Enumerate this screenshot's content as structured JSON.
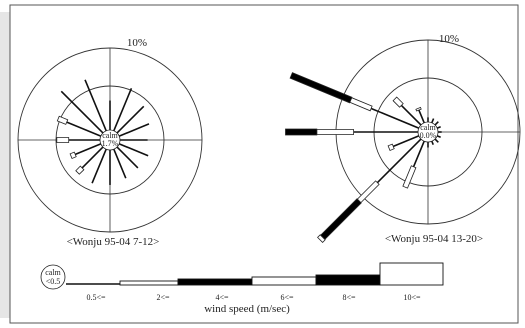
{
  "chart_data": [
    {
      "type": "wind-rose",
      "caption": "<Wonju 95-04 7-12>",
      "ring_label": "10%",
      "calm_label": "calm",
      "calm_value": "1.7%",
      "ring_percent": 10,
      "directions": [
        "N",
        "NNE",
        "NE",
        "ENE",
        "E",
        "ESE",
        "SE",
        "SSE",
        "S",
        "SSW",
        "SW",
        "WSW",
        "W",
        "WNW",
        "NW",
        "NNW"
      ],
      "wind_speed_bins": [
        "0.5<=",
        "2<=",
        "4<=",
        "6<=",
        "8<=",
        "10<="
      ],
      "petals": [
        {
          "direction": "N",
          "pct": [
            3.2,
            0,
            0,
            0,
            0,
            0
          ]
        },
        {
          "direction": "NNE",
          "pct": [
            5.0,
            0,
            0,
            0,
            0,
            0
          ]
        },
        {
          "direction": "NE",
          "pct": [
            4.1,
            0,
            0,
            0,
            0,
            0
          ]
        },
        {
          "direction": "ENE",
          "pct": [
            3.5,
            0,
            0,
            0,
            0,
            0
          ]
        },
        {
          "direction": "E",
          "pct": [
            3.0,
            0,
            0,
            0,
            0,
            0
          ]
        },
        {
          "direction": "ESE",
          "pct": [
            3.4,
            0,
            0,
            0,
            0,
            0
          ]
        },
        {
          "direction": "SE",
          "pct": [
            3.2,
            0,
            0,
            0,
            0,
            0
          ]
        },
        {
          "direction": "SSE",
          "pct": [
            3.4,
            0,
            0,
            0,
            0,
            0
          ]
        },
        {
          "direction": "S",
          "pct": [
            3.8,
            0,
            0,
            0,
            0,
            0
          ]
        },
        {
          "direction": "SSW",
          "pct": [
            4.0,
            0,
            0,
            0,
            0,
            0
          ]
        },
        {
          "direction": "SW",
          "pct": [
            3.2,
            0.7,
            0,
            0,
            0,
            0
          ]
        },
        {
          "direction": "WSW",
          "pct": [
            3.0,
            0.5,
            0,
            0,
            0,
            0
          ]
        },
        {
          "direction": "W",
          "pct": [
            3.4,
            1.3,
            0,
            0,
            0,
            0
          ]
        },
        {
          "direction": "WNW",
          "pct": [
            4.0,
            1.0,
            0,
            0,
            0,
            0
          ]
        },
        {
          "direction": "NW",
          "pct": [
            6.4,
            0,
            0,
            0,
            0,
            0
          ]
        },
        {
          "direction": "NNW",
          "pct": [
            6.0,
            0,
            0,
            0,
            0,
            0
          ]
        }
      ]
    },
    {
      "type": "wind-rose",
      "caption": "<Wonju 95-04 13-20>",
      "ring_label": "10%",
      "calm_label": "calm",
      "calm_value": "0.0%",
      "ring_percent": 10,
      "directions": [
        "N",
        "NNE",
        "NE",
        "ENE",
        "E",
        "ESE",
        "SE",
        "SSE",
        "S",
        "SSW",
        "SW",
        "WSW",
        "W",
        "WNW",
        "NW",
        "NNW"
      ],
      "wind_speed_bins": [
        "0.5<=",
        "2<=",
        "4<=",
        "6<=",
        "8<=",
        "10<="
      ],
      "petals": [
        {
          "direction": "N",
          "pct": [
            0.5,
            0,
            0,
            0,
            0,
            0
          ]
        },
        {
          "direction": "NNE",
          "pct": [
            0.5,
            0,
            0,
            0,
            0,
            0
          ]
        },
        {
          "direction": "NE",
          "pct": [
            0.5,
            0,
            0,
            0,
            0,
            0
          ]
        },
        {
          "direction": "ENE",
          "pct": [
            0.4,
            0,
            0,
            0,
            0,
            0
          ]
        },
        {
          "direction": "E",
          "pct": [
            0.4,
            0,
            0,
            0,
            0,
            0
          ]
        },
        {
          "direction": "ESE",
          "pct": [
            0.4,
            0,
            0,
            0,
            0,
            0
          ]
        },
        {
          "direction": "SE",
          "pct": [
            0.5,
            0,
            0,
            0,
            0,
            0
          ]
        },
        {
          "direction": "SSE",
          "pct": [
            0.4,
            0,
            0,
            0,
            0,
            0
          ]
        },
        {
          "direction": "S",
          "pct": [
            0.6,
            0,
            0,
            0,
            0,
            0
          ]
        },
        {
          "direction": "SSW",
          "pct": [
            3.0,
            2.4,
            0,
            0,
            0,
            0
          ]
        },
        {
          "direction": "SW",
          "pct": [
            6.7,
            2.8,
            5.6,
            0.4,
            0,
            0
          ]
        },
        {
          "direction": "WSW",
          "pct": [
            3.0,
            0.5,
            0,
            0,
            0,
            0
          ]
        },
        {
          "direction": "W",
          "pct": [
            7.0,
            4.0,
            3.4,
            0,
            0,
            0
          ]
        },
        {
          "direction": "WNW",
          "pct": [
            5.6,
            2.4,
            7.0,
            0,
            0,
            0
          ]
        },
        {
          "direction": "NW",
          "pct": [
            3.0,
            1.0,
            0,
            0,
            0,
            0
          ]
        },
        {
          "direction": "NNW",
          "pct": [
            1.5,
            0.2,
            0,
            0,
            0,
            0
          ]
        }
      ]
    }
  ],
  "legend": {
    "calm_label": "calm",
    "calm_threshold": "<0.5",
    "bins": [
      "0.5<=",
      "2<=",
      "4<=",
      "6<=",
      "8<=",
      "10<="
    ],
    "bin_fills": [
      "#000000",
      "#ffffff",
      "#000000",
      "#ffffff",
      "#000000",
      "#ffffff"
    ],
    "unit_label": "wind speed (m/sec)"
  },
  "colors": {
    "panel_shadow": "#e6e6e6",
    "frame": "#555555",
    "ink": "#222222"
  }
}
